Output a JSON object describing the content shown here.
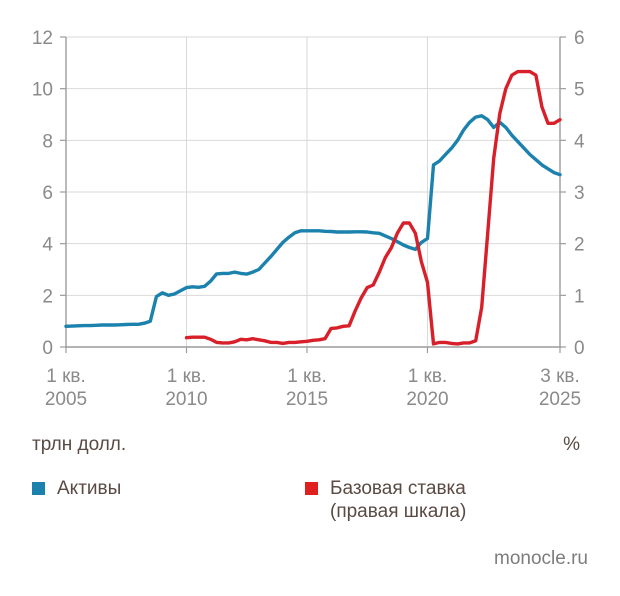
{
  "chart_data": {
    "type": "line",
    "title": "",
    "x_axis": {
      "unit": "quarters",
      "total_quarters": 82,
      "start_label": "1 кв. 2005",
      "end_label": "3 кв. 2025",
      "ticks": [
        {
          "q": 0,
          "line1": "1 кв.",
          "line2": "2005"
        },
        {
          "q": 20,
          "line1": "1 кв.",
          "line2": "2010"
        },
        {
          "q": 40,
          "line1": "1 кв.",
          "line2": "2015"
        },
        {
          "q": 60,
          "line1": "1 кв.",
          "line2": "2020"
        },
        {
          "q": 82,
          "line1": "3 кв.",
          "line2": "2025"
        }
      ]
    },
    "left_axis": {
      "range": [
        0,
        12
      ],
      "tick_step": 2,
      "tick_labels": [
        "0",
        "2",
        "4",
        "6",
        "8",
        "10",
        "12"
      ],
      "unit": "трлн долл."
    },
    "right_axis": {
      "range": [
        0,
        6
      ],
      "tick_step": 1,
      "tick_labels": [
        "0",
        "1",
        "2",
        "3",
        "4",
        "5",
        "6"
      ],
      "unit": "%"
    },
    "grid": true,
    "legend_position": "bottom",
    "series": [
      {
        "id": "assets",
        "name": "Активы",
        "axis": "left",
        "color": "#1b81ad",
        "start_quarter": 0,
        "values": [
          0.8,
          0.81,
          0.82,
          0.83,
          0.83,
          0.84,
          0.85,
          0.85,
          0.85,
          0.86,
          0.87,
          0.88,
          0.88,
          0.92,
          1.0,
          1.95,
          2.1,
          2.0,
          2.05,
          2.18,
          2.3,
          2.33,
          2.31,
          2.35,
          2.55,
          2.83,
          2.85,
          2.85,
          2.9,
          2.85,
          2.82,
          2.9,
          3.0,
          3.25,
          3.5,
          3.78,
          4.05,
          4.25,
          4.42,
          4.5,
          4.5,
          4.5,
          4.5,
          4.48,
          4.47,
          4.45,
          4.45,
          4.45,
          4.46,
          4.46,
          4.45,
          4.42,
          4.4,
          4.3,
          4.2,
          4.08,
          3.95,
          3.85,
          3.78,
          4.05,
          4.2,
          7.05,
          7.2,
          7.45,
          7.7,
          8.0,
          8.4,
          8.7,
          8.9,
          8.95,
          8.8,
          8.5,
          8.7,
          8.5,
          8.2,
          7.95,
          7.7,
          7.45,
          7.25,
          7.05,
          6.9,
          6.75,
          6.67
        ]
      },
      {
        "id": "base-rate",
        "name": "Базовая ставка (правая шкала)",
        "axis": "right",
        "color": "#d8202a",
        "start_quarter": 20,
        "values": [
          0.18,
          0.19,
          0.19,
          0.19,
          0.15,
          0.09,
          0.08,
          0.08,
          0.1,
          0.15,
          0.14,
          0.16,
          0.14,
          0.12,
          0.09,
          0.09,
          0.07,
          0.09,
          0.09,
          0.1,
          0.11,
          0.13,
          0.14,
          0.16,
          0.36,
          0.37,
          0.4,
          0.41,
          0.7,
          0.95,
          1.15,
          1.2,
          1.45,
          1.73,
          1.92,
          2.2,
          2.4,
          2.4,
          2.2,
          1.65,
          1.25,
          0.06,
          0.09,
          0.09,
          0.07,
          0.06,
          0.08,
          0.08,
          0.12,
          0.77,
          2.2,
          3.65,
          4.52,
          5.0,
          5.26,
          5.33,
          5.33,
          5.33,
          5.26,
          4.65,
          4.33,
          4.33,
          4.4
        ]
      }
    ]
  },
  "units": {
    "left": "трлн долл.",
    "right": "%"
  },
  "legend": {
    "items": [
      {
        "label": "Активы",
        "label2": "",
        "color": "#1b81ad"
      },
      {
        "label": "Базовая ставка",
        "label2": "(правая шкала)",
        "color": "#e0201f"
      }
    ]
  },
  "source": "monocle.ru",
  "style": {
    "background": "#ffffff",
    "grid": "#d9d9d9",
    "axis": "#9c9c9c",
    "tick_text": "#8a8a8a",
    "text": "#594a43",
    "source_text": "#7d7d7d"
  }
}
